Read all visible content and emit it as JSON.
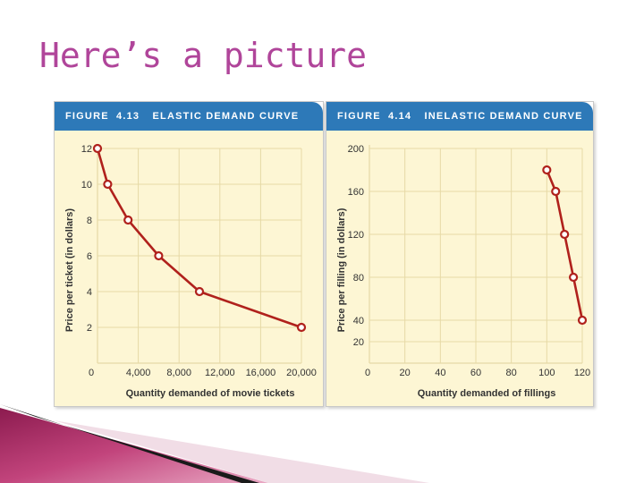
{
  "slide": {
    "title": "Here’s a picture"
  },
  "figures": [
    {
      "label": "FIGURE",
      "number": "4.13",
      "title": "ELASTIC DEMAND CURVE"
    },
    {
      "label": "FIGURE",
      "number": "4.14",
      "title": "INELASTIC DEMAND CURVE"
    }
  ],
  "colors": {
    "title": "#b0459a",
    "header": "#2d79b8",
    "plot_bg": "#fdf6d4",
    "grid": "#e6d9a6",
    "curve": "#b0211c"
  },
  "chart_data": [
    {
      "type": "line",
      "title": "ELASTIC DEMAND CURVE",
      "xlabel": "Quantity demanded of movie tickets",
      "ylabel": "Price per ticket (in dollars)",
      "xlim": [
        0,
        20000
      ],
      "ylim": [
        0,
        12
      ],
      "x_ticks": [
        0,
        4000,
        8000,
        12000,
        16000,
        20000
      ],
      "x_tick_labels": [
        "0",
        "4,000",
        "8,000",
        "12,000",
        "16,000",
        "20,000"
      ],
      "y_ticks": [
        2,
        4,
        6,
        8,
        10,
        12
      ],
      "y_tick_labels": [
        "2",
        "4",
        "6",
        "8",
        "10",
        "12"
      ],
      "grid": true,
      "series": [
        {
          "x": [
            0,
            1000,
            3000,
            6000,
            10000,
            20000
          ],
          "y": [
            12,
            10,
            8,
            6,
            4,
            2
          ]
        }
      ]
    },
    {
      "type": "line",
      "title": "INELASTIC DEMAND CURVE",
      "xlabel": "Quantity demanded of fillings",
      "ylabel": "Price per filling (in dollars)",
      "xlim": [
        0,
        120
      ],
      "ylim": [
        0,
        200
      ],
      "x_ticks": [
        0,
        20,
        40,
        60,
        80,
        100,
        120
      ],
      "x_tick_labels": [
        "0",
        "20",
        "40",
        "60",
        "80",
        "100",
        "120"
      ],
      "y_ticks": [
        20,
        40,
        80,
        120,
        160,
        200
      ],
      "y_tick_labels": [
        "20",
        "40",
        "80",
        "120",
        "160",
        "200"
      ],
      "grid": true,
      "series": [
        {
          "x": [
            100,
            105,
            110,
            115,
            120
          ],
          "y": [
            180,
            160,
            120,
            80,
            40
          ]
        }
      ]
    }
  ]
}
